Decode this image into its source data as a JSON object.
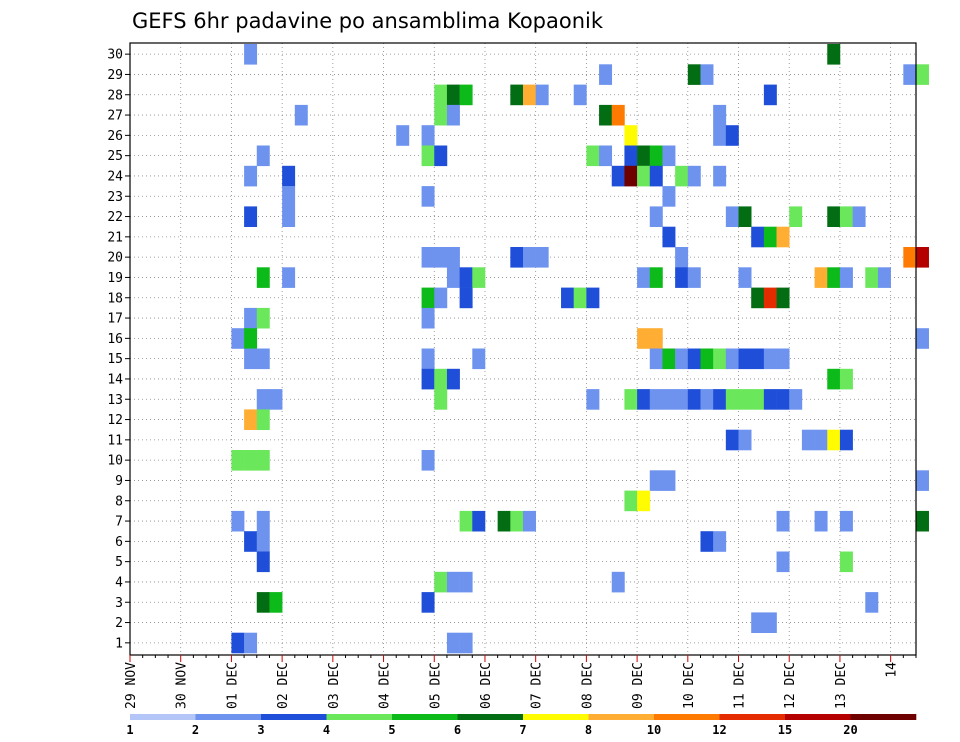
{
  "chart_data": {
    "type": "heatmap",
    "title": "GEFS 6hr padavine po ansamblima Kopaonik",
    "xlabel": "",
    "ylabel": "",
    "y_members": [
      1,
      30
    ],
    "y_ticks": [
      "1",
      "2",
      "3",
      "4",
      "5",
      "6",
      "7",
      "8",
      "9",
      "10",
      "11",
      "12",
      "13",
      "14",
      "15",
      "16",
      "17",
      "18",
      "19",
      "20",
      "21",
      "22",
      "23",
      "24",
      "25",
      "26",
      "27",
      "28",
      "29",
      "30"
    ],
    "x_steps_per_day": 4,
    "x_range_steps": [
      0,
      62
    ],
    "x_ticks": [
      "29 NOV",
      "30 NOV",
      "01 DEC",
      "02 DEC",
      "03 DEC",
      "04 DEC",
      "05 DEC",
      "06 DEC",
      "07 DEC",
      "08 DEC",
      "09 DEC",
      "10 DEC",
      "11 DEC",
      "12 DEC",
      "13 DEC",
      "14"
    ],
    "grid": true,
    "colorbar": {
      "colors": [
        "#b3c6f7",
        "#6e93ee",
        "#1f4fd9",
        "#6be75c",
        "#0cba1a",
        "#036d14",
        "#fffb00",
        "#ffae33",
        "#ff7a00",
        "#e52c00",
        "#b50000",
        "#6e0000"
      ],
      "labels": [
        "1",
        "2",
        "3",
        "4",
        "5",
        "6",
        "7",
        "8",
        "10",
        "12",
        "15",
        "20"
      ]
    },
    "cells": [
      [
        9,
        30,
        1
      ],
      [
        55,
        30,
        5
      ],
      [
        37,
        29,
        1
      ],
      [
        44,
        29,
        5
      ],
      [
        45,
        29,
        1
      ],
      [
        61,
        29,
        1
      ],
      [
        62,
        29,
        3
      ],
      [
        24,
        28,
        3
      ],
      [
        25,
        28,
        5
      ],
      [
        26,
        28,
        4
      ],
      [
        30,
        28,
        5
      ],
      [
        31,
        28,
        7
      ],
      [
        32,
        28,
        1
      ],
      [
        35,
        28,
        1
      ],
      [
        50,
        28,
        2
      ],
      [
        13,
        27,
        1
      ],
      [
        24,
        27,
        3
      ],
      [
        25,
        27,
        1
      ],
      [
        37,
        27,
        5
      ],
      [
        38,
        27,
        8
      ],
      [
        46,
        27,
        1
      ],
      [
        21,
        26,
        1
      ],
      [
        23,
        26,
        1
      ],
      [
        39,
        26,
        6
      ],
      [
        46,
        26,
        1
      ],
      [
        47,
        26,
        2
      ],
      [
        10,
        25,
        1
      ],
      [
        23,
        25,
        3
      ],
      [
        24,
        25,
        2
      ],
      [
        36,
        25,
        3
      ],
      [
        37,
        25,
        1
      ],
      [
        39,
        25,
        2
      ],
      [
        40,
        25,
        5
      ],
      [
        41,
        25,
        4
      ],
      [
        42,
        25,
        1
      ],
      [
        9,
        24,
        1
      ],
      [
        12,
        24,
        2
      ],
      [
        38,
        24,
        2
      ],
      [
        39,
        24,
        11
      ],
      [
        40,
        24,
        3
      ],
      [
        41,
        24,
        2
      ],
      [
        43,
        24,
        3
      ],
      [
        44,
        24,
        1
      ],
      [
        46,
        24,
        1
      ],
      [
        12,
        23,
        1
      ],
      [
        23,
        23,
        1
      ],
      [
        42,
        23,
        1
      ],
      [
        9,
        22,
        2
      ],
      [
        12,
        22,
        1
      ],
      [
        41,
        22,
        1
      ],
      [
        47,
        22,
        1
      ],
      [
        48,
        22,
        5
      ],
      [
        52,
        22,
        3
      ],
      [
        55,
        22,
        5
      ],
      [
        56,
        22,
        3
      ],
      [
        57,
        22,
        1
      ],
      [
        42,
        21,
        2
      ],
      [
        49,
        21,
        2
      ],
      [
        50,
        21,
        4
      ],
      [
        51,
        21,
        7
      ],
      [
        23,
        20,
        1
      ],
      [
        24,
        20,
        1
      ],
      [
        25,
        20,
        1
      ],
      [
        30,
        20,
        2
      ],
      [
        31,
        20,
        1
      ],
      [
        32,
        20,
        1
      ],
      [
        43,
        20,
        1
      ],
      [
        61,
        20,
        8
      ],
      [
        62,
        20,
        10
      ],
      [
        10,
        19,
        4
      ],
      [
        12,
        19,
        1
      ],
      [
        25,
        19,
        1
      ],
      [
        26,
        19,
        2
      ],
      [
        27,
        19,
        3
      ],
      [
        40,
        19,
        1
      ],
      [
        41,
        19,
        4
      ],
      [
        43,
        19,
        2
      ],
      [
        44,
        19,
        1
      ],
      [
        48,
        19,
        1
      ],
      [
        54,
        19,
        7
      ],
      [
        55,
        19,
        4
      ],
      [
        56,
        19,
        1
      ],
      [
        58,
        19,
        3
      ],
      [
        59,
        19,
        1
      ],
      [
        23,
        18,
        4
      ],
      [
        24,
        18,
        1
      ],
      [
        26,
        18,
        2
      ],
      [
        34,
        18,
        2
      ],
      [
        35,
        18,
        3
      ],
      [
        36,
        18,
        2
      ],
      [
        49,
        18,
        5
      ],
      [
        50,
        18,
        9
      ],
      [
        51,
        18,
        5
      ],
      [
        9,
        17,
        1
      ],
      [
        10,
        17,
        3
      ],
      [
        23,
        17,
        1
      ],
      [
        8,
        16,
        1
      ],
      [
        9,
        16,
        4
      ],
      [
        40,
        16,
        7
      ],
      [
        41,
        16,
        7
      ],
      [
        62,
        16,
        1
      ],
      [
        9,
        15,
        1
      ],
      [
        10,
        15,
        1
      ],
      [
        23,
        15,
        1
      ],
      [
        27,
        15,
        1
      ],
      [
        41,
        15,
        1
      ],
      [
        42,
        15,
        4
      ],
      [
        43,
        15,
        1
      ],
      [
        44,
        15,
        2
      ],
      [
        45,
        15,
        4
      ],
      [
        46,
        15,
        3
      ],
      [
        47,
        15,
        1
      ],
      [
        48,
        15,
        2
      ],
      [
        49,
        15,
        2
      ],
      [
        50,
        15,
        1
      ],
      [
        51,
        15,
        1
      ],
      [
        23,
        14,
        2
      ],
      [
        24,
        14,
        3
      ],
      [
        25,
        14,
        2
      ],
      [
        55,
        14,
        4
      ],
      [
        56,
        14,
        3
      ],
      [
        10,
        13,
        1
      ],
      [
        11,
        13,
        1
      ],
      [
        24,
        13,
        3
      ],
      [
        36,
        13,
        1
      ],
      [
        39,
        13,
        3
      ],
      [
        40,
        13,
        2
      ],
      [
        41,
        13,
        1
      ],
      [
        42,
        13,
        1
      ],
      [
        43,
        13,
        1
      ],
      [
        44,
        13,
        2
      ],
      [
        45,
        13,
        1
      ],
      [
        46,
        13,
        2
      ],
      [
        47,
        13,
        3
      ],
      [
        48,
        13,
        3
      ],
      [
        49,
        13,
        3
      ],
      [
        50,
        13,
        2
      ],
      [
        51,
        13,
        2
      ],
      [
        52,
        13,
        1
      ],
      [
        9,
        12,
        7
      ],
      [
        10,
        12,
        3
      ],
      [
        47,
        11,
        2
      ],
      [
        48,
        11,
        1
      ],
      [
        53,
        11,
        1
      ],
      [
        54,
        11,
        1
      ],
      [
        55,
        11,
        6
      ],
      [
        56,
        11,
        2
      ],
      [
        8,
        10,
        3
      ],
      [
        9,
        10,
        3
      ],
      [
        10,
        10,
        3
      ],
      [
        23,
        10,
        1
      ],
      [
        41,
        9,
        1
      ],
      [
        42,
        9,
        1
      ],
      [
        62,
        9,
        1
      ],
      [
        39,
        8,
        3
      ],
      [
        40,
        8,
        6
      ],
      [
        8,
        7,
        1
      ],
      [
        10,
        7,
        1
      ],
      [
        26,
        7,
        3
      ],
      [
        27,
        7,
        2
      ],
      [
        29,
        7,
        5
      ],
      [
        30,
        7,
        3
      ],
      [
        31,
        7,
        1
      ],
      [
        51,
        7,
        1
      ],
      [
        54,
        7,
        1
      ],
      [
        56,
        7,
        1
      ],
      [
        62,
        7,
        5
      ],
      [
        9,
        6,
        2
      ],
      [
        10,
        6,
        1
      ],
      [
        45,
        6,
        2
      ],
      [
        46,
        6,
        1
      ],
      [
        10,
        5,
        2
      ],
      [
        51,
        5,
        1
      ],
      [
        56,
        5,
        3
      ],
      [
        24,
        4,
        3
      ],
      [
        25,
        4,
        1
      ],
      [
        26,
        4,
        1
      ],
      [
        38,
        4,
        1
      ],
      [
        10,
        3,
        5
      ],
      [
        11,
        3,
        4
      ],
      [
        23,
        3,
        2
      ],
      [
        58,
        3,
        1
      ],
      [
        49,
        2,
        1
      ],
      [
        50,
        2,
        1
      ],
      [
        8,
        1,
        2
      ],
      [
        9,
        1,
        1
      ],
      [
        25,
        1,
        1
      ],
      [
        26,
        1,
        1
      ]
    ]
  }
}
